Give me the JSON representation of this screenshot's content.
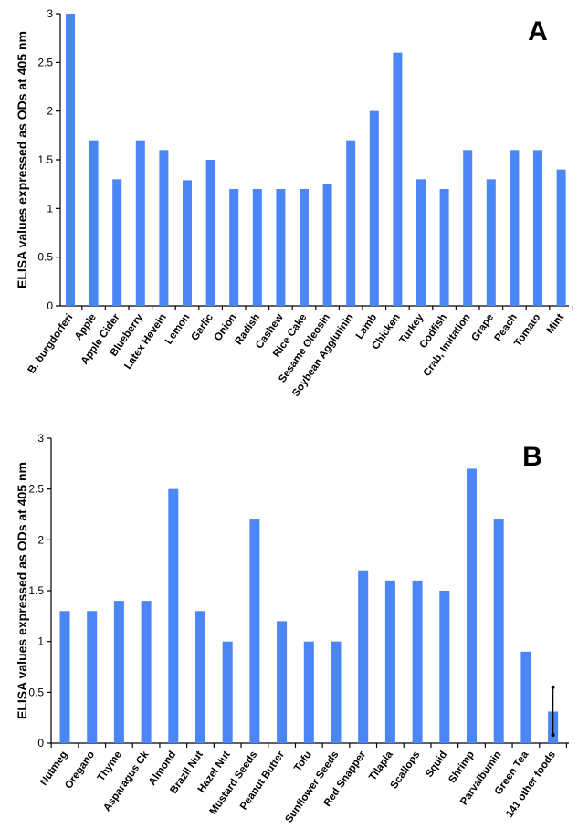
{
  "colors": {
    "bar": "#4a86f6",
    "axis": "#000000"
  },
  "chart_data": [
    {
      "type": "bar",
      "panel_label": "A",
      "title": "",
      "xlabel": "",
      "ylabel": "ELISA values expressed as ODs at 405 nm",
      "ylim": [
        0,
        3
      ],
      "yticks": [
        "0",
        "0.5",
        "1",
        "1.5",
        "2",
        "2.5",
        "3"
      ],
      "categories": [
        "B. burgdorferi",
        "Apple",
        "Apple Cider",
        "Blueberry",
        "Latex Hevein",
        "Lemon",
        "Garlic",
        "Onion",
        "Radish",
        "Cashew",
        "Rice Cake",
        "Sesame Oleosin",
        "Soybean Agglutinin",
        "Lamb",
        "Chicken",
        "Turkey",
        "Codfish",
        "Crab, Imitation",
        "Grape",
        "Peach",
        "Tomato",
        "Mint"
      ],
      "values": [
        3.0,
        1.7,
        1.3,
        1.7,
        1.6,
        1.29,
        1.5,
        1.2,
        1.2,
        1.2,
        1.2,
        1.25,
        1.7,
        2.0,
        2.6,
        1.3,
        1.2,
        1.6,
        1.3,
        1.6,
        1.6,
        1.4
      ]
    },
    {
      "type": "bar",
      "panel_label": "B",
      "title": "",
      "xlabel": "",
      "ylabel": "ELISA values expressed as ODs at 405 nm",
      "ylim": [
        0,
        3
      ],
      "yticks": [
        "0",
        "0.5",
        "1",
        "1.5",
        "2",
        "2.5",
        "3"
      ],
      "categories": [
        "Nutmeg",
        "Oregano",
        "Thyme",
        "Asparagus Ck",
        "Almond",
        "Brazil Nut",
        "Hazel Nut",
        "Mustard Seeds",
        "Peanut Butter",
        "Tofu",
        "Sunflower Seeds",
        "Red Snapper",
        "Tilapia",
        "Scallops",
        "Squid",
        "Shrimp",
        "Parvalbumin",
        "Green Tea",
        "141 other foods"
      ],
      "values": [
        1.3,
        1.3,
        1.4,
        1.4,
        2.5,
        1.3,
        1.0,
        2.2,
        1.2,
        1.0,
        1.0,
        1.7,
        1.6,
        1.6,
        1.5,
        2.7,
        2.2,
        0.9,
        0.31
      ],
      "error_bars": [
        null,
        null,
        null,
        null,
        null,
        null,
        null,
        null,
        null,
        null,
        null,
        null,
        null,
        null,
        null,
        null,
        null,
        null,
        [
          0.08,
          0.55
        ]
      ]
    }
  ]
}
